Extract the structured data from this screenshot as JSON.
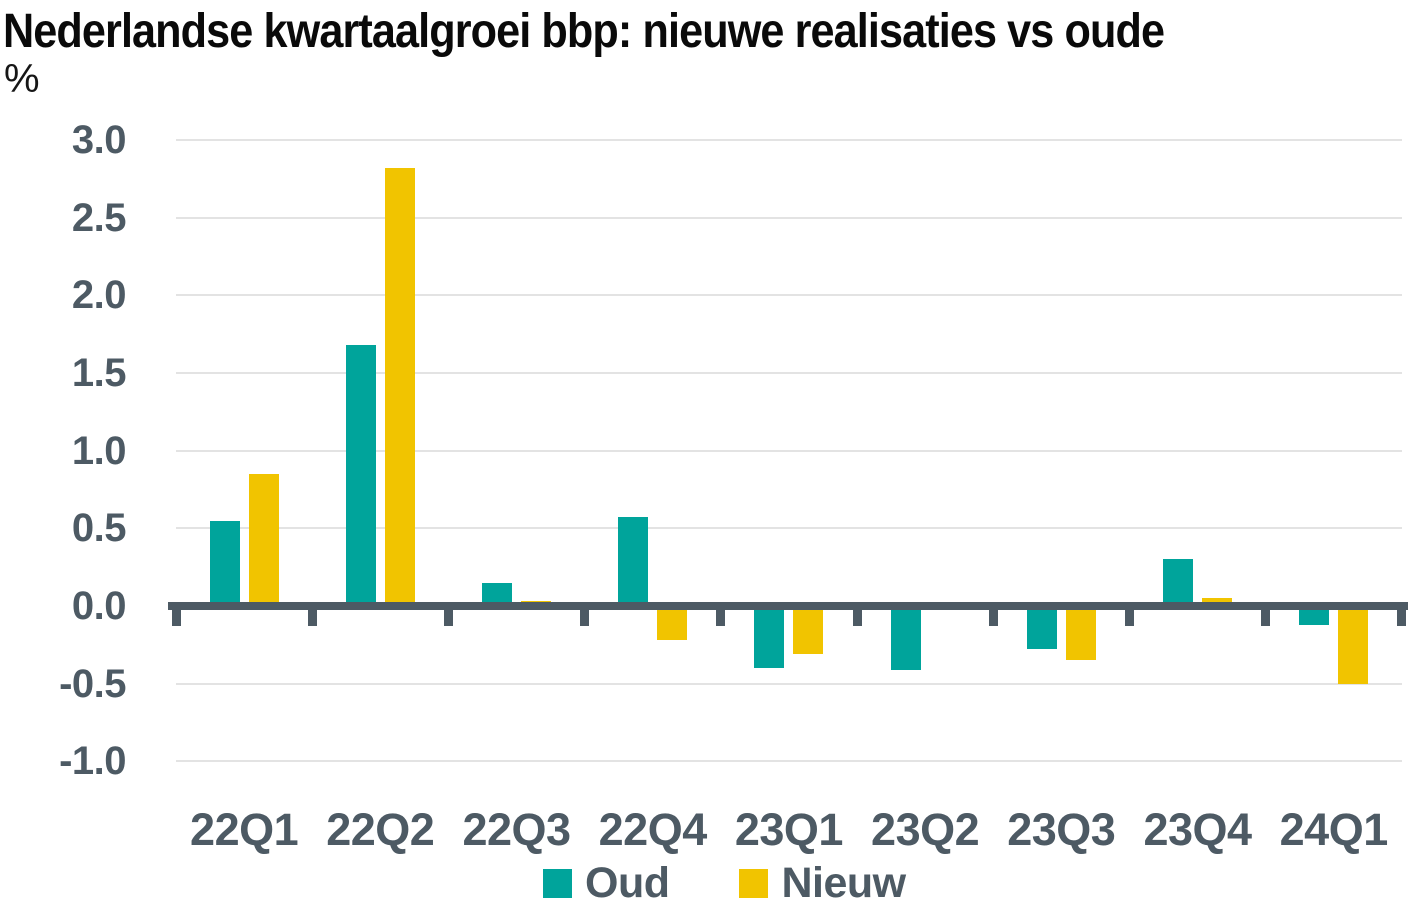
{
  "header": {
    "title": "Nederlandse kwartaalgroei bbp: nieuwe realisaties vs oude",
    "unit_label": "%"
  },
  "colors": {
    "axis": "#4d5a64",
    "grid": "#e3e3e3",
    "background": "#ffffff",
    "title": "#0a0a0a",
    "oud": "#00a49b",
    "nieuw": "#f1c400"
  },
  "chart_data": {
    "type": "bar",
    "title": "Nederlandse kwartaalgroei bbp: nieuwe realisaties vs oude",
    "xlabel": "",
    "ylabel": "%",
    "categories": [
      "22Q1",
      "22Q2",
      "22Q3",
      "22Q4",
      "23Q1",
      "23Q2",
      "23Q3",
      "23Q4",
      "24Q1"
    ],
    "series": [
      {
        "name": "Oud",
        "color_key": "oud",
        "values": [
          0.55,
          1.68,
          0.15,
          0.57,
          -0.4,
          -0.41,
          -0.28,
          0.3,
          -0.12
        ]
      },
      {
        "name": "Nieuw",
        "color_key": "nieuw",
        "values": [
          0.85,
          2.82,
          0.03,
          -0.22,
          -0.31,
          0.0,
          -0.35,
          0.05,
          -0.5
        ]
      }
    ],
    "ylim": [
      -1.0,
      3.0
    ],
    "ytick_step": 0.5,
    "ytick_labels": [
      "3.0",
      "2.5",
      "2.0",
      "1.5",
      "1.0",
      "0.5",
      "0.0",
      "-0.5",
      "-1.0"
    ],
    "grid": "horizontal",
    "legend_position": "bottom"
  }
}
